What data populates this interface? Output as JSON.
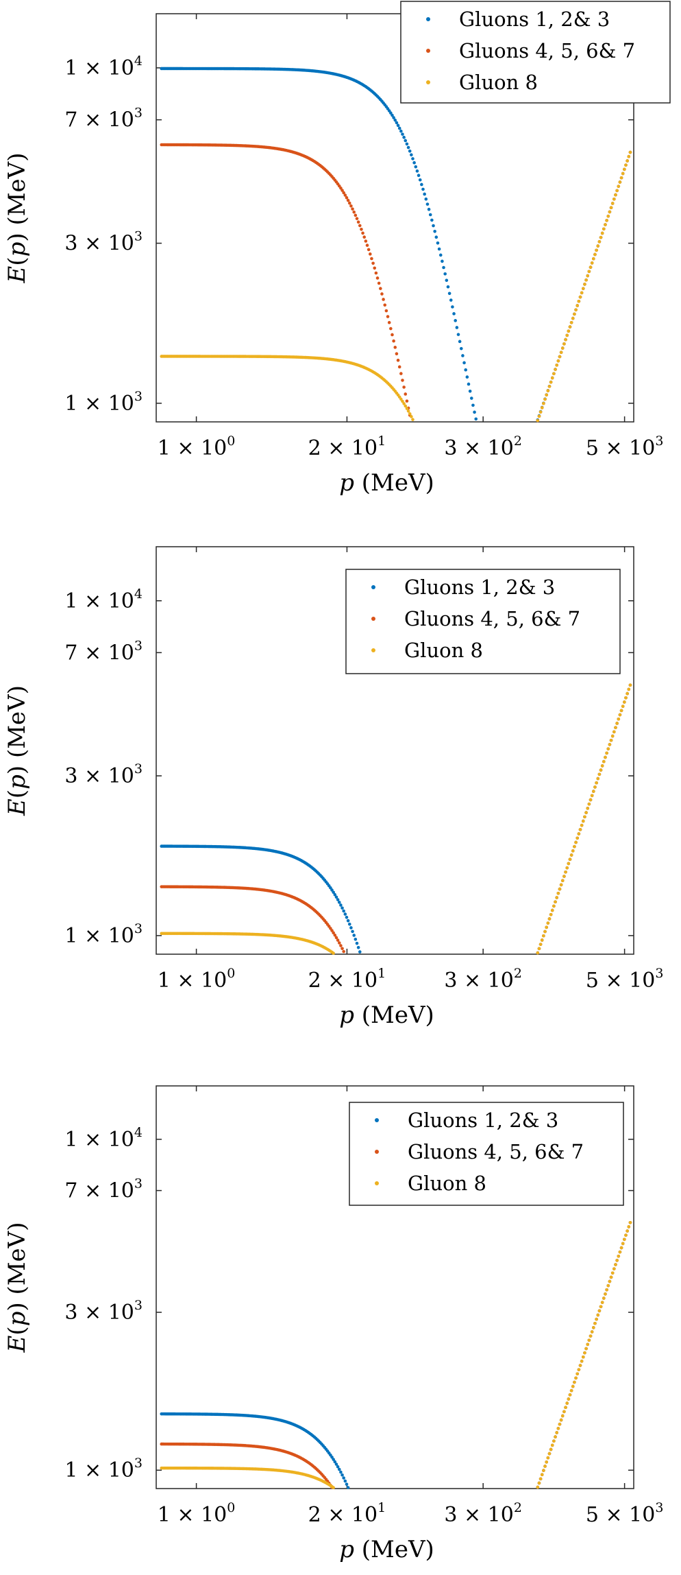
{
  "chart_data": [
    {
      "type": "scatter",
      "xlabel": "p (MeV)",
      "ylabel": "E(p) (MeV)",
      "x_scale": "log",
      "y_scale": "log",
      "xlim": [
        0.45,
        6000
      ],
      "ylim": [
        880,
        14500
      ],
      "xticks": [
        {
          "value": 1,
          "mant": "1",
          "exp": "0"
        },
        {
          "value": 20,
          "mant": "2",
          "exp": "1"
        },
        {
          "value": 300,
          "mant": "3",
          "exp": "2"
        },
        {
          "value": 5000,
          "mant": "5",
          "exp": "3"
        }
      ],
      "yticks": [
        {
          "value": 1000,
          "mant": "1",
          "exp": "3"
        },
        {
          "value": 3000,
          "mant": "3",
          "exp": "3"
        },
        {
          "value": 7000,
          "mant": "7",
          "exp": "3"
        },
        {
          "value": 10000,
          "mant": "1",
          "exp": "4"
        }
      ],
      "legend_position": "top-right",
      "series": [
        {
          "name": "Gluons 1, 2& 3",
          "color": "#0072BD",
          "plateau": 9950,
          "width": 80
        },
        {
          "name": "Gluons 4, 5, 6& 7",
          "color": "#D95319",
          "plateau": 5900,
          "width": 30
        },
        {
          "name": "Gluon 8",
          "color": "#EDB120",
          "plateau": 1380,
          "width": 100
        }
      ]
    },
    {
      "type": "scatter",
      "xlabel": "p (MeV)",
      "ylabel": "E(p) (MeV)",
      "x_scale": "log",
      "y_scale": "log",
      "xlim": [
        0.45,
        6000
      ],
      "ylim": [
        880,
        14500
      ],
      "xticks": [
        {
          "value": 1,
          "mant": "1",
          "exp": "0"
        },
        {
          "value": 20,
          "mant": "2",
          "exp": "1"
        },
        {
          "value": 300,
          "mant": "3",
          "exp": "2"
        },
        {
          "value": 5000,
          "mant": "5",
          "exp": "3"
        }
      ],
      "yticks": [
        {
          "value": 1000,
          "mant": "1",
          "exp": "3"
        },
        {
          "value": 3000,
          "mant": "3",
          "exp": "3"
        },
        {
          "value": 7000,
          "mant": "7",
          "exp": "3"
        },
        {
          "value": 10000,
          "mant": "1",
          "exp": "4"
        }
      ],
      "legend_position": "top-right",
      "series": [
        {
          "name": "Gluons 1, 2& 3",
          "color": "#0072BD",
          "plateau": 1850,
          "width": 25
        },
        {
          "name": "Gluons 4, 5, 6& 7",
          "color": "#D95319",
          "plateau": 1400,
          "width": 25
        },
        {
          "name": "Gluon 8",
          "color": "#EDB120",
          "plateau": 1015,
          "width": 40
        }
      ]
    },
    {
      "type": "scatter",
      "xlabel": "p (MeV)",
      "ylabel": "E(p) (MeV)",
      "x_scale": "log",
      "y_scale": "log",
      "xlim": [
        0.45,
        6000
      ],
      "ylim": [
        880,
        14500
      ],
      "xticks": [
        {
          "value": 1,
          "mant": "1",
          "exp": "0"
        },
        {
          "value": 20,
          "mant": "2",
          "exp": "1"
        },
        {
          "value": 300,
          "mant": "3",
          "exp": "2"
        },
        {
          "value": 5000,
          "mant": "5",
          "exp": "3"
        }
      ],
      "yticks": [
        {
          "value": 1000,
          "mant": "1",
          "exp": "3"
        },
        {
          "value": 3000,
          "mant": "3",
          "exp": "3"
        },
        {
          "value": 7000,
          "mant": "7",
          "exp": "3"
        },
        {
          "value": 10000,
          "mant": "1",
          "exp": "4"
        }
      ],
      "legend_position": "top-right",
      "series": [
        {
          "name": "Gluons 1, 2& 3",
          "color": "#0072BD",
          "plateau": 1480,
          "width": 25
        },
        {
          "name": "Gluons 4, 5, 6& 7",
          "color": "#D95319",
          "plateau": 1200,
          "width": 25
        },
        {
          "name": "Gluon 8",
          "color": "#EDB120",
          "plateau": 1015,
          "width": 40
        }
      ]
    }
  ]
}
